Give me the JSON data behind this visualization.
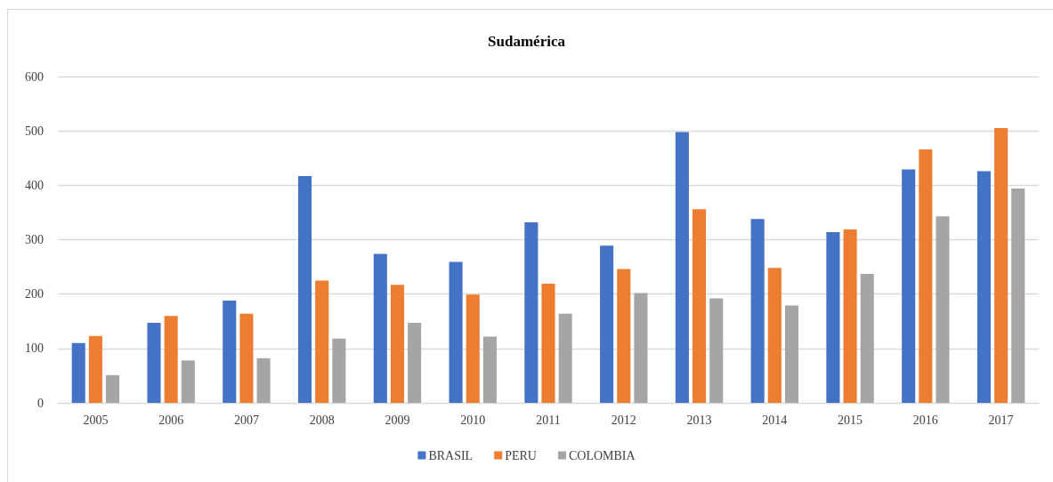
{
  "chart_data": {
    "type": "bar",
    "title": "Sudamérica",
    "categories": [
      "2005",
      "2006",
      "2007",
      "2008",
      "2009",
      "2010",
      "2011",
      "2012",
      "2013",
      "2014",
      "2015",
      "2016",
      "2017"
    ],
    "series": [
      {
        "name": "BRASIL",
        "color": "#4472c4",
        "values": [
          110,
          147,
          188,
          417,
          274,
          259,
          332,
          289,
          498,
          338,
          314,
          429,
          426
        ]
      },
      {
        "name": "PERU",
        "color": "#ed7d31",
        "values": [
          123,
          160,
          164,
          225,
          217,
          199,
          219,
          246,
          356,
          248,
          319,
          466,
          505
        ]
      },
      {
        "name": "COLOMBIA",
        "color": "#a5a5a5",
        "values": [
          51,
          78,
          82,
          118,
          147,
          122,
          164,
          202,
          192,
          179,
          237,
          343,
          394
        ]
      }
    ],
    "ylim": [
      0,
      600
    ],
    "yticks": [
      0,
      100,
      200,
      300,
      400,
      500,
      600
    ],
    "grid": "y",
    "legend": "bottom"
  }
}
